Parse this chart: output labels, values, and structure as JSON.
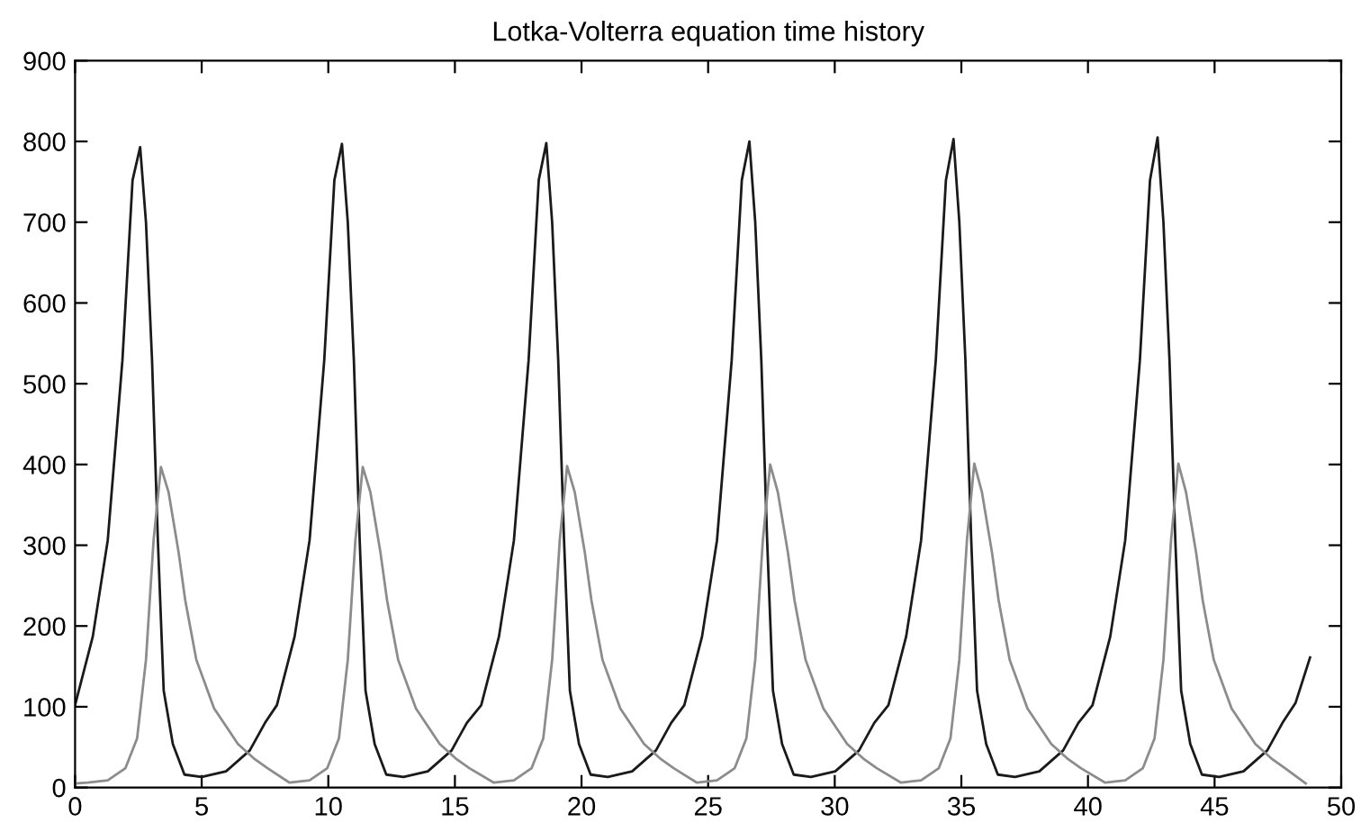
{
  "chart_data": {
    "type": "line",
    "title": "Lotka-Volterra equation time history",
    "xlim": [
      0,
      50
    ],
    "ylim": [
      0,
      900
    ],
    "xticks": [
      0,
      5,
      10,
      15,
      20,
      25,
      30,
      35,
      40,
      45,
      50
    ],
    "yticks": [
      0,
      100,
      200,
      300,
      400,
      500,
      600,
      700,
      800,
      900
    ],
    "grid": false,
    "marker": "none",
    "line_style": "solid",
    "series": [
      {
        "color": "#1a1a1a",
        "x": [
          0,
          0.7,
          1.29,
          1.87,
          2.27,
          2.57,
          2.8,
          3.04,
          3.27,
          3.5,
          3.86,
          4.32,
          5.0,
          5.96,
          6.9,
          7.5,
          7.97,
          8.67,
          9.26,
          9.84,
          10.24,
          10.54,
          10.77,
          11.01,
          11.24,
          11.47,
          11.83,
          12.29,
          12.97,
          13.93,
          14.87,
          15.47,
          16.04,
          16.74,
          17.33,
          17.91,
          18.31,
          18.61,
          18.84,
          19.08,
          19.31,
          19.54,
          19.9,
          20.36,
          21.04,
          22.0,
          22.94,
          23.54,
          24.06,
          24.76,
          25.35,
          25.93,
          26.33,
          26.63,
          26.86,
          27.1,
          27.33,
          27.56,
          27.92,
          28.38,
          29.06,
          30.02,
          30.96,
          31.56,
          32.12,
          32.82,
          33.41,
          33.99,
          34.39,
          34.69,
          34.92,
          35.16,
          35.39,
          35.62,
          35.98,
          36.44,
          37.12,
          38.08,
          39.02,
          39.62,
          40.18,
          40.88,
          41.47,
          42.05,
          42.45,
          42.75,
          42.98,
          43.22,
          43.45,
          43.68,
          44.04,
          44.5,
          45.18,
          46.14,
          47.08,
          47.68,
          48.2,
          48.77
        ],
        "values": [
          102,
          187,
          306,
          529,
          752,
          793,
          700,
          529,
          306,
          120,
          54,
          16,
          13,
          20,
          46,
          80,
          102,
          187,
          306,
          529,
          752,
          797,
          700,
          529,
          306,
          120,
          54,
          16,
          13,
          20,
          46,
          80,
          102,
          187,
          306,
          529,
          752,
          798,
          700,
          529,
          306,
          120,
          54,
          16,
          13,
          20,
          46,
          80,
          102,
          187,
          306,
          529,
          752,
          800,
          700,
          529,
          306,
          120,
          54,
          16,
          13,
          20,
          46,
          80,
          102,
          187,
          306,
          529,
          752,
          803,
          700,
          529,
          306,
          120,
          54,
          16,
          13,
          20,
          46,
          80,
          102,
          187,
          306,
          529,
          752,
          805,
          700,
          529,
          306,
          120,
          54,
          16,
          13,
          20,
          46,
          80,
          105,
          161
        ]
      },
      {
        "color": "#8c8c8c",
        "x": [
          0,
          0.5,
          1.29,
          1.99,
          2.45,
          2.8,
          3.1,
          3.39,
          3.69,
          4.09,
          4.35,
          4.79,
          5.49,
          6.43,
          7.1,
          7.6,
          8.47,
          9.26,
          9.96,
          10.42,
          10.77,
          11.07,
          11.36,
          11.66,
          12.06,
          12.32,
          12.76,
          13.46,
          14.4,
          15.07,
          15.57,
          16.54,
          17.33,
          18.03,
          18.49,
          18.84,
          19.14,
          19.43,
          19.73,
          20.13,
          20.39,
          20.83,
          21.53,
          22.47,
          23.14,
          23.64,
          24.56,
          25.35,
          26.05,
          26.51,
          26.86,
          27.16,
          27.45,
          27.75,
          28.15,
          28.41,
          28.85,
          29.55,
          30.49,
          31.16,
          31.66,
          32.62,
          33.41,
          34.11,
          34.57,
          34.92,
          35.22,
          35.51,
          35.81,
          36.21,
          36.47,
          36.91,
          37.61,
          38.55,
          39.22,
          39.72,
          40.68,
          41.47,
          42.17,
          42.63,
          42.98,
          43.28,
          43.57,
          43.87,
          44.27,
          44.53,
          44.97,
          45.67,
          46.61,
          47.28,
          47.78,
          48.6
        ],
        "values": [
          5,
          6,
          9,
          24,
          61,
          158,
          306,
          397,
          366,
          291,
          232,
          158,
          98,
          54,
          35,
          24,
          6,
          9,
          24,
          61,
          158,
          306,
          397,
          366,
          291,
          232,
          158,
          98,
          54,
          35,
          24,
          6,
          9,
          24,
          61,
          158,
          306,
          398,
          366,
          291,
          232,
          158,
          98,
          54,
          35,
          24,
          6,
          9,
          24,
          61,
          158,
          306,
          400,
          366,
          291,
          232,
          158,
          98,
          54,
          35,
          24,
          6,
          9,
          24,
          61,
          158,
          306,
          401,
          366,
          291,
          232,
          158,
          98,
          54,
          35,
          24,
          6,
          9,
          24,
          61,
          158,
          306,
          401,
          366,
          291,
          232,
          158,
          98,
          54,
          35,
          24,
          5
        ]
      }
    ]
  }
}
